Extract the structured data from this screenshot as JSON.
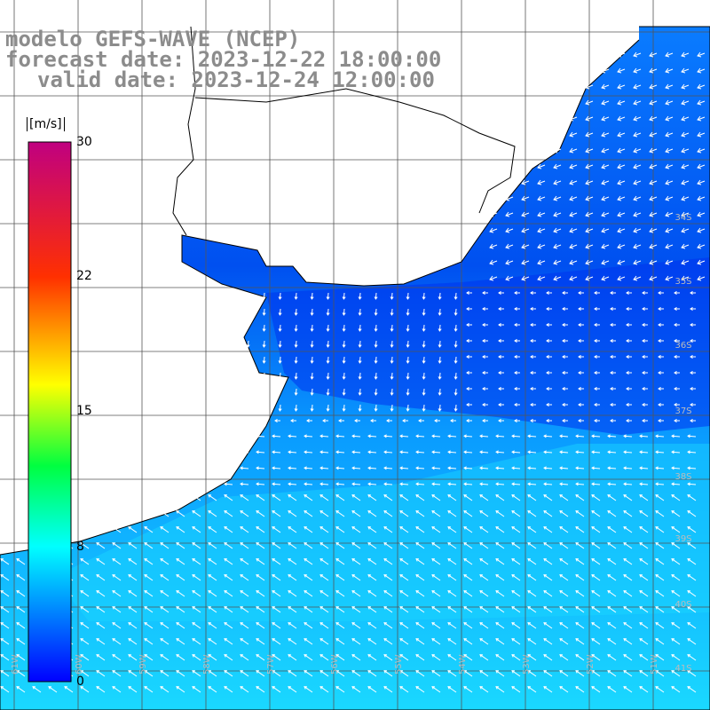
{
  "header": {
    "title_line1": "modelo GEFS-WAVE (NCEP)",
    "title_line2": "forecast date: 2023-12-22 18:00:00",
    "title_line3": "valid date: 2023-12-24 12:00:00"
  },
  "colorbar": {
    "unit": "[m/s]",
    "ticks": [
      "30",
      "22",
      "15",
      "8",
      "0"
    ],
    "tick_values": [
      30,
      22,
      15,
      8,
      0
    ],
    "colors": [
      "#0000ff",
      "#0080ff",
      "#00e0ff",
      "#00ff80",
      "#00ff00",
      "#ffff00",
      "#ff8000",
      "#ff0000",
      "#ff0080",
      "#c00080"
    ]
  },
  "map": {
    "lat_labels": [
      "34S",
      "35S",
      "36S",
      "37S",
      "38S",
      "39S",
      "40S",
      "41S"
    ],
    "lon_labels": [
      "61W",
      "60W",
      "59W",
      "58W",
      "57W",
      "56W",
      "55W",
      "54W",
      "53W",
      "52W",
      "51W"
    ],
    "ocean_colors": {
      "calm": "#0033ee",
      "moderate": "#0a8cff",
      "strong": "#1ad8ff"
    },
    "land_color": "#ffffff",
    "arrow_color": "#ffffff"
  }
}
